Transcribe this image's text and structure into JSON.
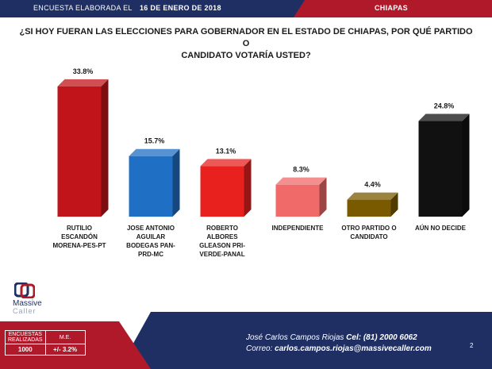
{
  "header": {
    "prefix": "ENCUESTA ELABORADA EL",
    "date": "16 DE ENERO DE 2018",
    "state": "CHIAPAS"
  },
  "question": {
    "line1": "¿SI HOY FUERAN LAS ELECCIONES PARA GOBERNADOR EN EL ESTADO DE CHIAPAS, POR QUÉ PARTIDO O",
    "line2": "CANDIDATO VOTARÍA USTED?"
  },
  "chart_data": {
    "type": "bar",
    "categories": [
      "RUTILIO ESCANDÓN MORENA-PES-PT",
      "JOSE ANTONIO AGUILAR BODEGAS PAN-PRD-MC",
      "ROBERTO ALBORES GLEASON PRI-VERDE-PANAL",
      "INDEPENDIENTE",
      "OTRO PARTIDO O CANDIDATO",
      "AÚN NO DECIDE"
    ],
    "category_lines": [
      [
        "RUTILIO",
        "ESCANDÓN",
        "MORENA-PES-PT"
      ],
      [
        "JOSE ANTONIO",
        "AGUILAR",
        "BODEGAS PAN-",
        "PRD-MC"
      ],
      [
        "ROBERTO",
        "ALBORES",
        "GLEASON PRI-",
        "VERDE-PANAL"
      ],
      [
        "INDEPENDIENTE"
      ],
      [
        "OTRO PARTIDO O",
        "CANDIDATO"
      ],
      [
        "AÚN NO DECIDE"
      ]
    ],
    "values": [
      33.8,
      15.7,
      13.1,
      8.3,
      4.4,
      24.8
    ],
    "labels": [
      "33.8%",
      "15.7%",
      "13.1%",
      "8.3%",
      "4.4%",
      "24.8%"
    ],
    "colors": [
      "#c0141a",
      "#1f6fc4",
      "#e8201e",
      "#f06a6a",
      "#7a5a00",
      "#111111"
    ],
    "title": "",
    "xlabel": "",
    "ylabel": "",
    "ylim": [
      0,
      35
    ],
    "grid": false,
    "legend": "none"
  },
  "footer": {
    "stats_header_1": "ENCUESTAS REALIZADAS",
    "stats_header_2": "M.E.",
    "stats_value_1": "1000",
    "stats_value_2": "+/- 3.2%",
    "contact_name": "José Carlos Campos Riojas",
    "contact_phone": "Cel: (81) 2000 6062",
    "contact_email_label": "Correo:",
    "contact_email": "carlos.campos.riojas@massivecaller.com",
    "page_number": "2"
  },
  "logo": {
    "line1": "Massive",
    "line2": "Caller"
  }
}
